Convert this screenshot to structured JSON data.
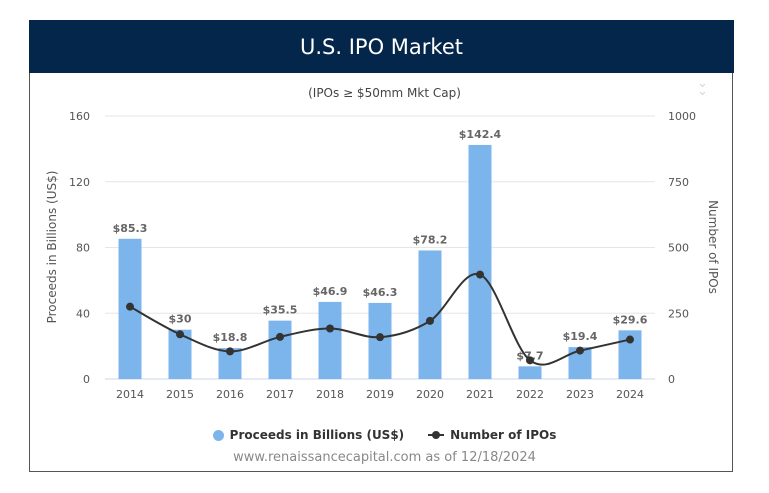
{
  "header": {
    "title": "U.S. IPO Market"
  },
  "menu_icon": "double-chevron-down-icon",
  "chart_data": {
    "type": "bar+line",
    "title": "U.S. IPO Market",
    "subtitle": "(IPOs ≥ $50mm Mkt Cap)",
    "categories": [
      "2014",
      "2015",
      "2016",
      "2017",
      "2018",
      "2019",
      "2020",
      "2021",
      "2022",
      "2023",
      "2024"
    ],
    "series": [
      {
        "name": "Proceeds in Billions (US$)",
        "type": "bar",
        "axis": "left",
        "color": "#7cb5ec",
        "values": [
          85.3,
          30,
          18.8,
          35.5,
          46.9,
          46.3,
          78.2,
          142.4,
          7.7,
          19.4,
          29.6
        ],
        "labels": [
          "$85.3",
          "$30",
          "$18.8",
          "$35.5",
          "$46.9",
          "$46.3",
          "$78.2",
          "$142.4",
          "$7.7",
          "$19.4",
          "$29.6"
        ]
      },
      {
        "name": "Number of IPOs",
        "type": "spline",
        "axis": "right",
        "color": "#333333",
        "values": [
          275,
          170,
          105,
          160,
          192,
          159,
          221,
          397,
          71,
          108,
          150
        ]
      }
    ],
    "ylabel": "Proceeds in Billions (US$)",
    "ylabel_right": "Number of IPOs",
    "ylim": [
      0,
      160
    ],
    "yticks": [
      "0",
      "40",
      "80",
      "120",
      "160"
    ],
    "ylim_right": [
      0,
      1000
    ],
    "yticks_right": [
      "0",
      "250",
      "500",
      "750",
      "1000"
    ],
    "grid": true,
    "legend": "bottom-center"
  },
  "legend": {
    "bar_label": "Proceeds in Billions (US$)",
    "line_label": "Number of IPOs"
  },
  "source": "www.renaissancecapital.com as of 12/18/2024"
}
